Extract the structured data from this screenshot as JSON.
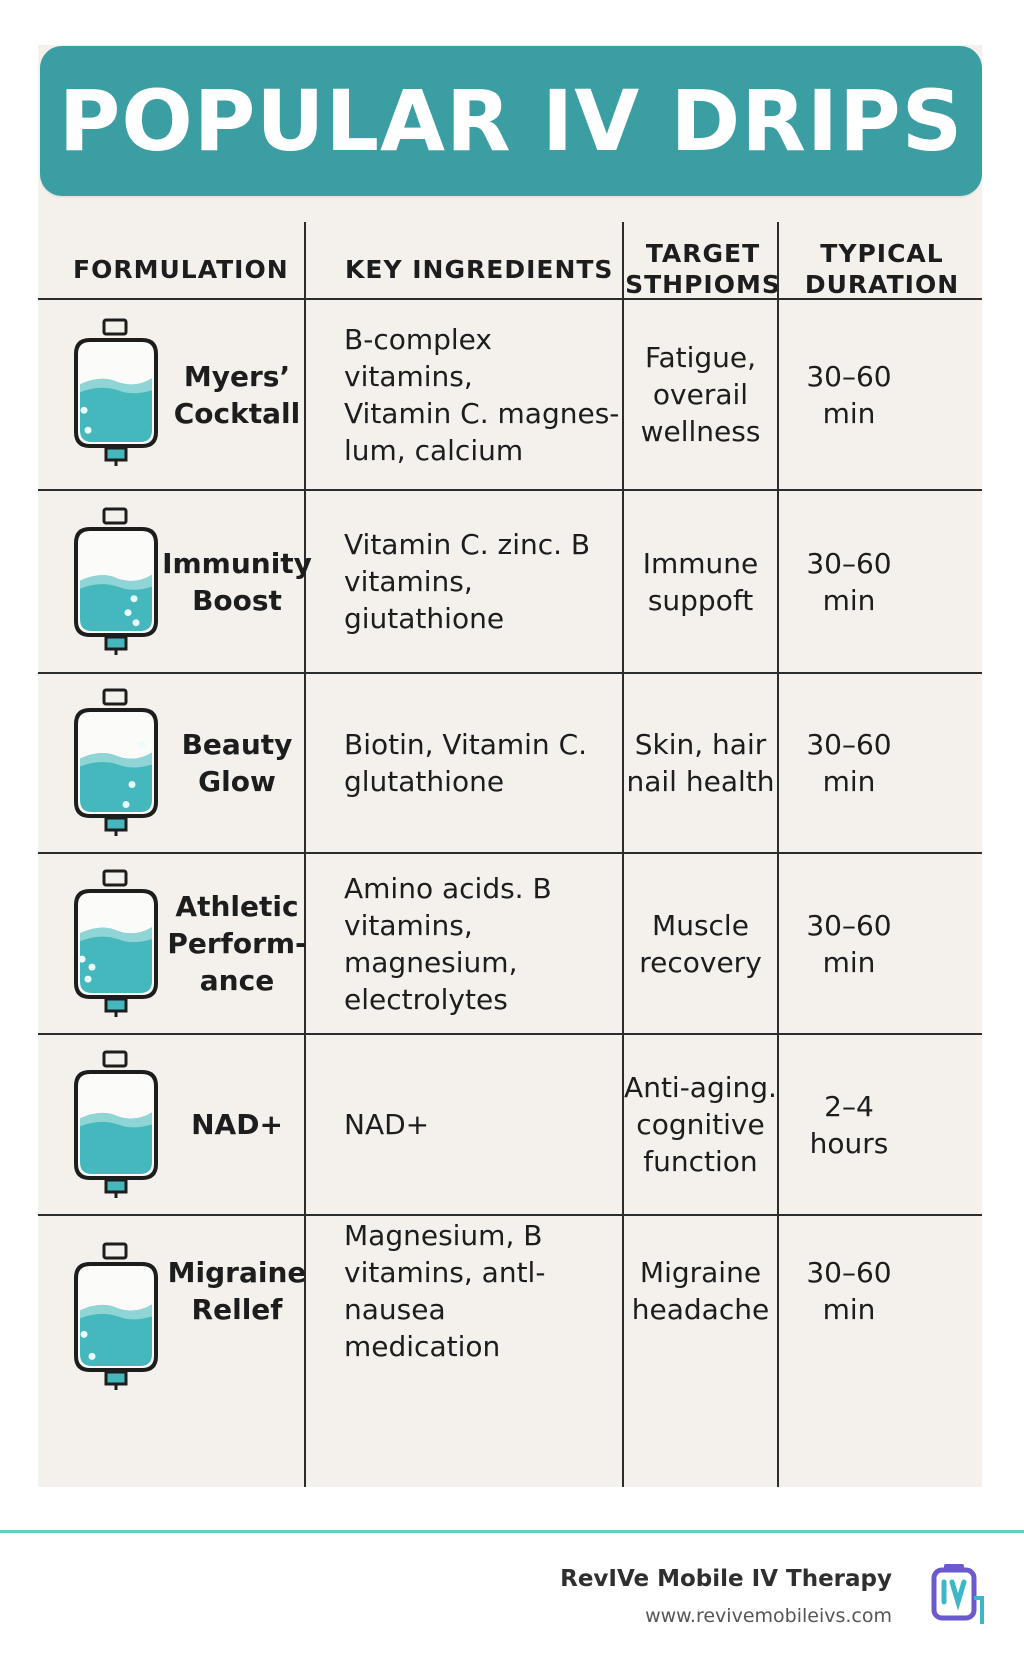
{
  "title": "POPULAR IV DRIPS",
  "headers": {
    "formulation": "FORMULATION",
    "ingredients": "KEY INGREDIENTS",
    "target": "TARGET\nSTHPIOMS",
    "duration": "TYPICAL\nDURATION"
  },
  "rows": [
    {
      "name": "Myers’\nCocktall",
      "ingredients": "B-complex vitamins,\nVitamin C. magnes-\nlum, calcium",
      "target": "Fatigue,\noverail\nwellness",
      "duration": "30–60\nmin",
      "icon": "iv-bag-icon"
    },
    {
      "name": "Immunity\nBoost",
      "ingredients": "Vitamin C. zinc. B\nvitamins, giutathione",
      "target": "Immune\nsuppoft",
      "duration": "30–60\nmin",
      "icon": "iv-bag-icon"
    },
    {
      "name": "Beauty\nGlow",
      "ingredients": "Biotin, Vitamin C.\nglutathione",
      "target": "Skin, hair\nnail health",
      "duration": "30–60\nmin",
      "icon": "iv-bag-icon"
    },
    {
      "name": "Athletic\nPerform-\nance",
      "ingredients": "Amino acids. B\nvitamins, magnesium,\nelectrolytes",
      "target": "Muscle\nrecovery",
      "duration": "30–60\nmin",
      "icon": "iv-bag-icon"
    },
    {
      "name": "NAD+",
      "ingredients": "NAD+",
      "target": "Anti-aging.\ncognitive\nfunction",
      "duration": "2–4\nhours",
      "icon": "iv-bag-icon"
    },
    {
      "name": "Migraine\nRellef",
      "ingredients": "Magnesium, B\nvitamins, antl-nausea\nmedication",
      "target": "Migraine\nheadache",
      "duration": "30–60\nmin",
      "icon": "iv-bag-icon"
    }
  ],
  "footer": {
    "brand": "RevIVe Mobile IV Therapy",
    "url": "www.revivemobileivs.com"
  },
  "colors": {
    "header_teal": "#3a9ea3",
    "fluid": "#45b8bd",
    "fluid_light": "#8fd5d6",
    "background": "#f4f1ec",
    "footer_rule": "#5fd0c4"
  }
}
